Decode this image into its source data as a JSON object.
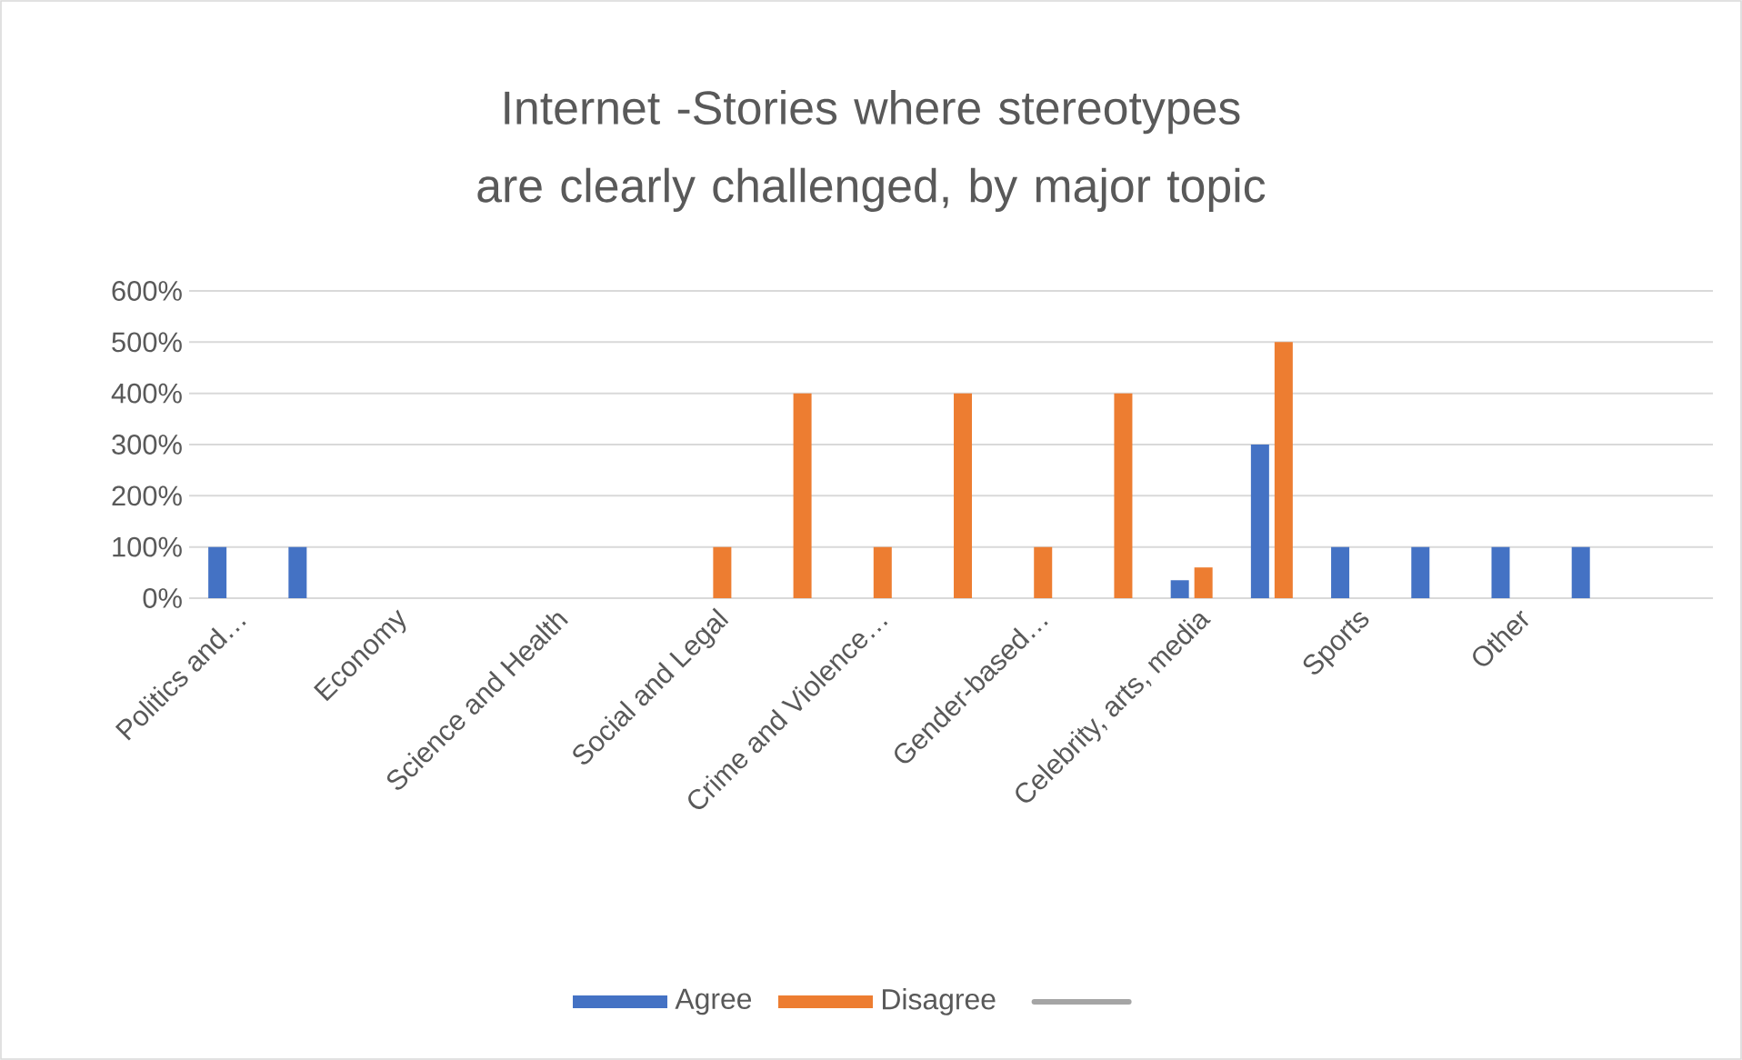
{
  "chart_data": {
    "type": "bar",
    "title": "Internet -Stories where stereotypes are clearly challenged, by major topic",
    "categories": [
      "Politics and…",
      null,
      "Economy",
      null,
      "Science and Health",
      null,
      "Social and Legal",
      null,
      "Crime and Violence…",
      null,
      "Gender-based…",
      null,
      "Celebrity, arts, media",
      null,
      "Sports",
      null,
      "Other",
      null,
      null
    ],
    "series": [
      {
        "name": "Agree",
        "color": "#4472c4",
        "values": [
          100,
          100,
          null,
          null,
          null,
          null,
          null,
          null,
          null,
          null,
          null,
          null,
          35,
          300,
          100,
          100,
          100,
          100,
          null
        ]
      },
      {
        "name": "Disagree",
        "color": "#ed7d31",
        "values": [
          null,
          null,
          null,
          null,
          null,
          null,
          100,
          400,
          100,
          400,
          100,
          400,
          60,
          500,
          null,
          null,
          null,
          null,
          null
        ]
      },
      {
        "type": "line",
        "color": "#a5a5a5",
        "values": [
          null,
          null,
          null,
          null,
          null,
          null,
          null,
          null,
          null,
          null,
          null,
          null,
          null,
          null,
          null,
          null,
          null,
          null,
          null
        ]
      }
    ],
    "ylim": [
      0,
      600
    ],
    "yticks": [
      {
        "value": 0,
        "label": "0%"
      },
      {
        "value": 100,
        "label": "100%"
      },
      {
        "value": 200,
        "label": "200%"
      },
      {
        "value": 300,
        "label": "300%"
      },
      {
        "value": 400,
        "label": "400%"
      },
      {
        "value": 500,
        "label": "500%"
      },
      {
        "value": 600,
        "label": "600%"
      }
    ],
    "grid": "y",
    "legend": "bottom"
  }
}
